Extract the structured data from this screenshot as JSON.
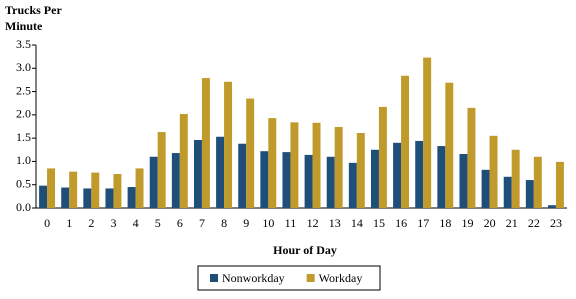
{
  "chart_data": {
    "type": "bar",
    "y_title": "Trucks Per Minute",
    "x_title": "Hour  of Day",
    "categories": [
      "0",
      "1",
      "2",
      "3",
      "4",
      "5",
      "6",
      "7",
      "8",
      "9",
      "10",
      "11",
      "12",
      "13",
      "14",
      "15",
      "16",
      "17",
      "18",
      "19",
      "20",
      "21",
      "22",
      "23"
    ],
    "series": [
      {
        "name": "Nonworkday",
        "color": "#1f4e79",
        "values": [
          0.48,
          0.44,
          0.42,
          0.42,
          0.45,
          1.1,
          1.18,
          1.46,
          1.53,
          1.38,
          1.22,
          1.2,
          1.14,
          1.1,
          0.97,
          1.25,
          1.4,
          1.44,
          1.33,
          1.16,
          0.82,
          0.67,
          0.6,
          0.06
        ]
      },
      {
        "name": "Workday",
        "color": "#c09a2b",
        "values": [
          0.85,
          0.78,
          0.76,
          0.73,
          0.85,
          1.63,
          2.02,
          2.79,
          2.71,
          2.35,
          1.93,
          1.84,
          1.83,
          1.74,
          1.61,
          2.17,
          2.84,
          3.23,
          2.69,
          2.15,
          1.55,
          1.25,
          1.1,
          0.99
        ]
      }
    ],
    "ylim": [
      0,
      3.5
    ],
    "yticks": [
      {
        "value": 0,
        "label": "0.0"
      },
      0.5,
      {
        "value": 1,
        "label": "1.0"
      },
      1.5,
      {
        "value": 2,
        "label": "2.0"
      },
      2.5,
      {
        "value": 3,
        "label": "3.0"
      },
      3.5
    ],
    "grid": false,
    "legend": "bottom"
  }
}
